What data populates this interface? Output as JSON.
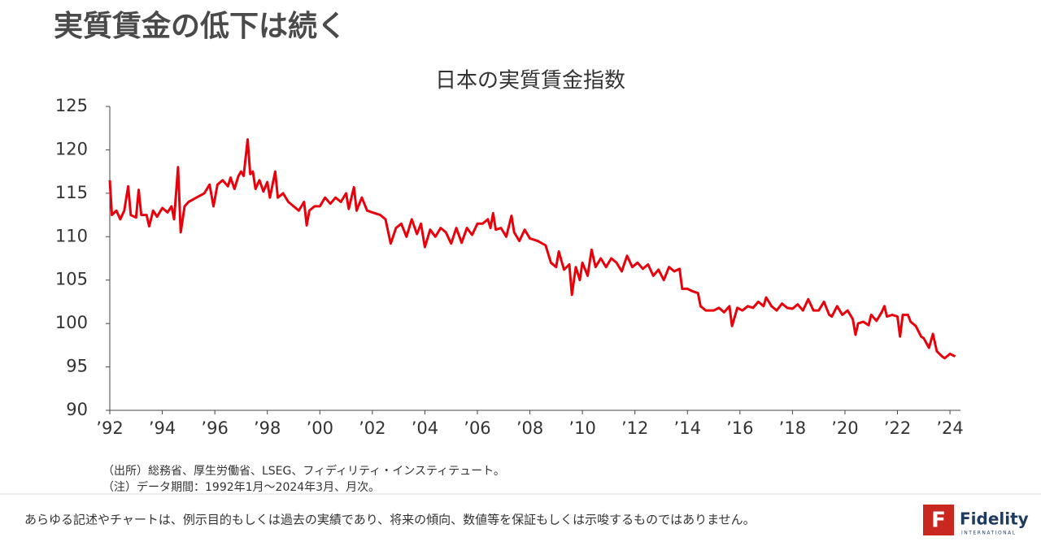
{
  "headline": "実質賃金の低下は続く",
  "chart_data": {
    "type": "line",
    "title": "日本の実質賃金指数",
    "x": [
      1992.0,
      1992.08,
      1992.25,
      1992.4,
      1992.55,
      1992.7,
      1992.8,
      1993.0,
      1993.1,
      1993.2,
      1993.4,
      1993.5,
      1993.65,
      1993.8,
      1994.0,
      1994.2,
      1994.35,
      1994.45,
      1994.6,
      1994.7,
      1994.85,
      1995.0,
      1995.3,
      1995.6,
      1995.8,
      1995.95,
      1996.1,
      1996.3,
      1996.5,
      1996.6,
      1996.75,
      1996.9,
      1997.0,
      1997.1,
      1997.25,
      1997.35,
      1997.45,
      1997.55,
      1997.7,
      1997.85,
      1998.0,
      1998.1,
      1998.3,
      1998.4,
      1998.6,
      1998.8,
      1999.0,
      1999.2,
      1999.4,
      1999.5,
      1999.6,
      1999.8,
      2000.0,
      2000.2,
      2000.4,
      2000.6,
      2000.8,
      2001.0,
      2001.1,
      2001.3,
      2001.4,
      2001.6,
      2001.8,
      2002.0,
      2002.3,
      2002.5,
      2002.7,
      2002.9,
      2003.1,
      2003.3,
      2003.5,
      2003.7,
      2003.85,
      2004.0,
      2004.2,
      2004.4,
      2004.6,
      2004.8,
      2005.0,
      2005.2,
      2005.4,
      2005.6,
      2005.8,
      2006.0,
      2006.2,
      2006.4,
      2006.5,
      2006.6,
      2006.7,
      2006.9,
      2007.1,
      2007.3,
      2007.4,
      2007.6,
      2007.8,
      2008.0,
      2008.3,
      2008.6,
      2008.8,
      2009.0,
      2009.1,
      2009.3,
      2009.5,
      2009.6,
      2009.75,
      2009.9,
      2010.0,
      2010.2,
      2010.35,
      2010.5,
      2010.7,
      2010.9,
      2011.1,
      2011.3,
      2011.5,
      2011.7,
      2011.9,
      2012.1,
      2012.3,
      2012.5,
      2012.7,
      2012.9,
      2013.1,
      2013.3,
      2013.5,
      2013.7,
      2013.8,
      2014.0,
      2014.2,
      2014.4,
      2014.5,
      2014.7,
      2015.0,
      2015.2,
      2015.4,
      2015.6,
      2015.7,
      2015.9,
      2016.1,
      2016.3,
      2016.5,
      2016.7,
      2016.9,
      2017.0,
      2017.2,
      2017.4,
      2017.6,
      2017.8,
      2018.0,
      2018.2,
      2018.4,
      2018.6,
      2018.8,
      2019.0,
      2019.2,
      2019.4,
      2019.5,
      2019.7,
      2019.9,
      2020.1,
      2020.3,
      2020.4,
      2020.5,
      2020.7,
      2020.9,
      2021.0,
      2021.2,
      2021.4,
      2021.5,
      2021.6,
      2021.8,
      2022.0,
      2022.1,
      2022.2,
      2022.4,
      2022.5,
      2022.7,
      2022.9,
      2023.0,
      2023.2,
      2023.35,
      2023.5,
      2023.7,
      2023.8,
      2024.0,
      2024.2
    ],
    "values": [
      116.5,
      112.5,
      113.0,
      112.0,
      113.0,
      115.8,
      112.5,
      112.2,
      115.4,
      112.5,
      112.5,
      111.2,
      113.0,
      112.3,
      113.3,
      112.8,
      113.5,
      112.0,
      118.0,
      110.5,
      113.5,
      114.0,
      114.5,
      115.0,
      116.0,
      113.5,
      116.0,
      116.5,
      115.8,
      116.8,
      115.5,
      117.0,
      117.5,
      117.0,
      121.2,
      117.2,
      117.5,
      115.5,
      116.5,
      115.2,
      116.3,
      114.5,
      117.5,
      114.5,
      115.0,
      114.0,
      113.5,
      113.0,
      114.0,
      111.3,
      113.0,
      113.5,
      113.5,
      114.5,
      113.8,
      114.5,
      114.0,
      115.0,
      113.2,
      115.7,
      113.0,
      114.5,
      113.0,
      112.8,
      112.5,
      112.0,
      109.2,
      111.0,
      111.5,
      110.0,
      112.0,
      110.3,
      111.5,
      108.8,
      110.8,
      110.0,
      111.0,
      110.5,
      109.2,
      111.0,
      109.3,
      111.0,
      110.2,
      111.5,
      111.5,
      112.0,
      111.0,
      112.7,
      110.8,
      111.0,
      110.0,
      112.4,
      110.5,
      109.5,
      110.8,
      109.8,
      109.5,
      109.0,
      107.0,
      106.5,
      108.3,
      106.2,
      106.8,
      103.3,
      106.5,
      105.0,
      107.0,
      105.5,
      108.5,
      106.5,
      107.5,
      106.5,
      107.5,
      107.0,
      106.0,
      107.8,
      106.5,
      107.0,
      106.3,
      106.8,
      105.5,
      106.2,
      105.0,
      106.5,
      106.0,
      106.3,
      104.0,
      104.0,
      103.7,
      103.5,
      102.0,
      101.5,
      101.5,
      101.8,
      101.3,
      102.0,
      99.7,
      101.8,
      101.5,
      102.0,
      101.8,
      102.5,
      102.0,
      103.0,
      102.0,
      101.5,
      102.3,
      101.8,
      101.7,
      102.2,
      101.5,
      102.8,
      101.5,
      101.5,
      102.5,
      101.0,
      100.8,
      102.0,
      101.0,
      101.5,
      100.5,
      98.7,
      100.0,
      100.2,
      99.8,
      101.0,
      100.3,
      101.3,
      102.0,
      100.8,
      101.0,
      100.8,
      98.5,
      101.0,
      101.0,
      100.2,
      99.7,
      98.5,
      98.3,
      97.2,
      98.8,
      96.8,
      96.2,
      96.0,
      96.5,
      96.2
    ],
    "color": "#e8000b",
    "xlim": [
      1992,
      2024.4
    ],
    "xticks": [
      {
        "value": 1992,
        "label": "’92"
      },
      {
        "value": 1994,
        "label": "’94"
      },
      {
        "value": 1996,
        "label": "’96"
      },
      {
        "value": 1998,
        "label": "’98"
      },
      {
        "value": 2000,
        "label": "’00"
      },
      {
        "value": 2002,
        "label": "’02"
      },
      {
        "value": 2004,
        "label": "’04"
      },
      {
        "value": 2006,
        "label": "’06"
      },
      {
        "value": 2008,
        "label": "’08"
      },
      {
        "value": 2010,
        "label": "’10"
      },
      {
        "value": 2012,
        "label": "’12"
      },
      {
        "value": 2014,
        "label": "’14"
      },
      {
        "value": 2016,
        "label": "’16"
      },
      {
        "value": 2018,
        "label": "’18"
      },
      {
        "value": 2020,
        "label": "’20"
      },
      {
        "value": 2022,
        "label": "’22"
      },
      {
        "value": 2024,
        "label": "’24"
      }
    ],
    "ylim": [
      90,
      125
    ],
    "yticks": [
      90,
      95,
      100,
      105,
      110,
      115,
      120,
      125
    ],
    "grid": false
  },
  "notes": [
    "（出所）総務省、厚生労働省、LSEG、フィディリティ・インスティテュート。",
    "（注）データ期間：1992年1月～2024年3月、月次。"
  ],
  "footer": {
    "disclaimer": "あらゆる記述やチャートは、例示目的もしくは過去の実績であり、将来の傾向、数値等を保証もしくは示唆するものではありません。",
    "logo": {
      "name": "Fidelity",
      "sub": "INTERNATIONAL"
    }
  }
}
